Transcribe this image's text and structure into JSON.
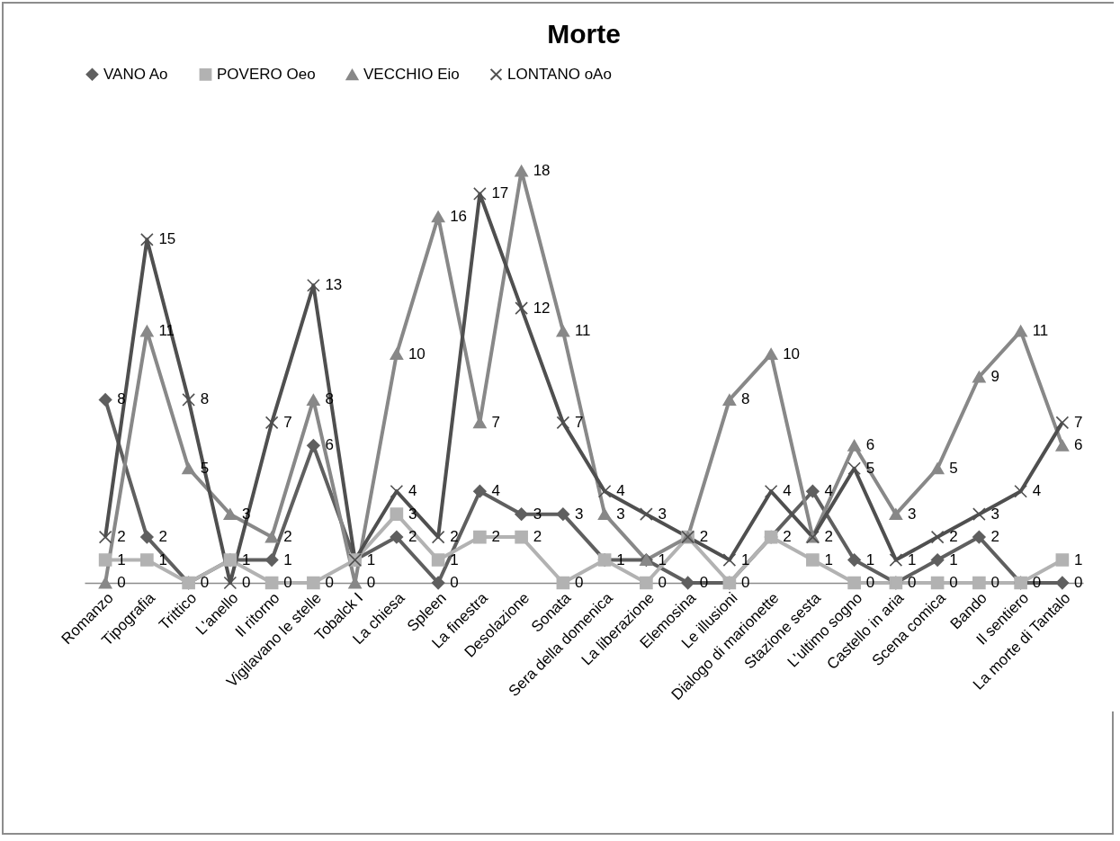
{
  "chart_data": {
    "type": "line",
    "title": "Morte",
    "categories": [
      "Romanzo",
      "Tipografia",
      "Trittico",
      "L'anello",
      "Il ritorno",
      "Vigilavano le stelle",
      "Tobalck I",
      "La chiesa",
      "Spleen",
      "La finestra",
      "Desolazione",
      "Sonata",
      "Sera della domenica",
      "La liberazione",
      "Elemosina",
      "Le illusioni",
      "Dialogo di marionette",
      "Stazione sesta",
      "L'ultimo sogno",
      "Castello in aria",
      "Scena comica",
      "Bando",
      "Il sentiero",
      "La morte di Tantalo"
    ],
    "series": [
      {
        "name": "VANO Ao",
        "color": "#5f5f5f",
        "marker": "diamond",
        "values": [
          8,
          2,
          0,
          1,
          1,
          6,
          1,
          2,
          0,
          4,
          3,
          3,
          1,
          1,
          0,
          0,
          2,
          4,
          1,
          0,
          1,
          2,
          0,
          0
        ],
        "value_labels": [
          "8",
          "2",
          "0",
          "1",
          "1",
          "6",
          "1",
          "2",
          "0",
          "4",
          "3",
          "3",
          "1",
          "1",
          "0",
          "0",
          "2",
          "4",
          "1",
          "0",
          "1",
          "2",
          "0",
          "0"
        ]
      },
      {
        "name": "POVERO Oeo",
        "color": "#b2b2b2",
        "marker": "square",
        "values": [
          1,
          1,
          0,
          1,
          0,
          0,
          1,
          3,
          1,
          2,
          2,
          0,
          1,
          0,
          2,
          0,
          2,
          1,
          0,
          0,
          0,
          0,
          0,
          1
        ],
        "value_labels": [
          "1",
          "1",
          null,
          null,
          "0",
          "0",
          null,
          "3",
          "1",
          "2",
          "2",
          "0",
          null,
          "0",
          "2",
          null,
          null,
          "1",
          "0",
          null,
          "0",
          "0",
          null,
          "1"
        ]
      },
      {
        "name": "VECCHIO Eio",
        "color": "#888888",
        "marker": "triangle",
        "values": [
          0,
          11,
          5,
          3,
          2,
          8,
          0,
          10,
          16,
          7,
          18,
          11,
          3,
          1,
          2,
          8,
          10,
          2,
          6,
          3,
          5,
          9,
          11,
          6
        ],
        "value_labels": [
          "0",
          "11",
          "5",
          "3",
          "2",
          "8",
          "0",
          "10",
          "16",
          "7",
          "18",
          "11",
          "3",
          null,
          null,
          "8",
          "10",
          "2",
          "6",
          "3",
          "5",
          "9",
          "11",
          "6"
        ]
      },
      {
        "name": "LONTANO oAo",
        "color": "#4f4f4f",
        "marker": "cross",
        "values": [
          2,
          15,
          8,
          0,
          7,
          13,
          1,
          4,
          2,
          17,
          12,
          7,
          4,
          3,
          2,
          1,
          4,
          2,
          5,
          1,
          2,
          3,
          4,
          7
        ],
        "value_labels": [
          "2",
          "15",
          "8",
          "0",
          "7",
          "13",
          null,
          "4",
          "2",
          "17",
          "12",
          "7",
          "4",
          "3",
          null,
          "1",
          "4",
          null,
          "5",
          "1",
          "2",
          "3",
          "4",
          "7"
        ]
      }
    ],
    "tick_labels": "x",
    "legend": "top",
    "grid": false
  }
}
